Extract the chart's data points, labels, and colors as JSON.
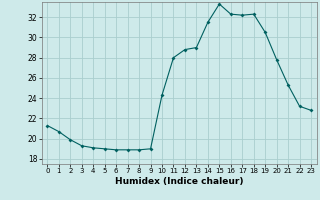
{
  "title": "",
  "xlabel": "Humidex (Indice chaleur)",
  "ylabel": "",
  "background_color": "#ceeaea",
  "grid_color": "#aacece",
  "line_color": "#006060",
  "marker_color": "#006060",
  "xlim": [
    -0.5,
    23.5
  ],
  "ylim": [
    17.5,
    33.5
  ],
  "yticks": [
    18,
    20,
    22,
    24,
    26,
    28,
    30,
    32
  ],
  "xticks": [
    0,
    1,
    2,
    3,
    4,
    5,
    6,
    7,
    8,
    9,
    10,
    11,
    12,
    13,
    14,
    15,
    16,
    17,
    18,
    19,
    20,
    21,
    22,
    23
  ],
  "x": [
    0,
    1,
    2,
    3,
    4,
    5,
    6,
    7,
    8,
    9,
    10,
    11,
    12,
    13,
    14,
    15,
    16,
    17,
    18,
    19,
    20,
    21,
    22,
    23
  ],
  "y": [
    21.3,
    20.7,
    19.9,
    19.3,
    19.1,
    19.0,
    18.9,
    18.9,
    18.9,
    19.0,
    24.3,
    28.0,
    28.8,
    29.0,
    31.5,
    33.3,
    32.3,
    32.2,
    32.3,
    30.5,
    27.8,
    25.3,
    23.2,
    22.8
  ]
}
